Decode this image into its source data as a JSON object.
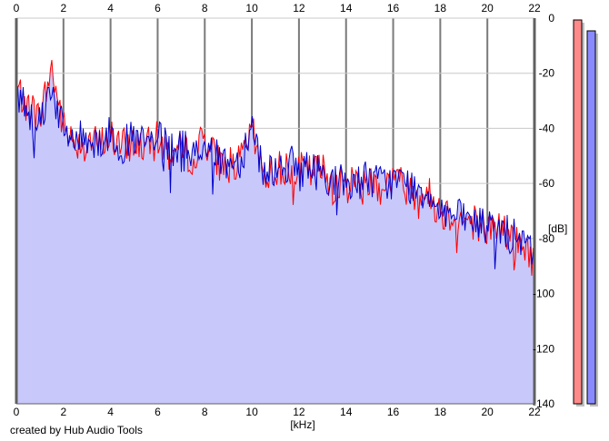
{
  "credit": "created by Hub Audio Tools",
  "chart_data": {
    "type": "area",
    "xlabel": "[kHz]",
    "ylabel": "[dB]",
    "xlim": [
      0,
      22
    ],
    "ylim": [
      -140,
      0
    ],
    "x_ticks": [
      0,
      2,
      4,
      6,
      8,
      10,
      12,
      14,
      16,
      18,
      20,
      22
    ],
    "y_ticks": [
      0,
      -20,
      -40,
      -60,
      -80,
      -100,
      -120,
      -140
    ],
    "grid": true,
    "fill_color": "#c8c8fa",
    "series": [
      {
        "color": "#ff0000",
        "x": [
          0,
          0.5,
          1,
          1.5,
          2,
          2.5,
          3,
          3.5,
          4,
          4.5,
          5,
          5.5,
          6,
          6.5,
          7,
          7.5,
          8,
          8.5,
          9,
          9.5,
          10,
          10.5,
          11,
          11.5,
          12,
          12.5,
          13,
          13.5,
          14,
          14.5,
          15,
          15.5,
          16,
          16.5,
          17,
          17.5,
          18,
          18.5,
          19,
          19.5,
          20,
          20.5,
          21,
          21.5,
          22
        ],
        "values": [
          -25,
          -32,
          -36,
          -18,
          -40,
          -45,
          -44,
          -46,
          -43,
          -47,
          -45,
          -47,
          -44,
          -49,
          -48,
          -50,
          -43,
          -52,
          -53,
          -53,
          -41,
          -57,
          -55,
          -54,
          -55,
          -56,
          -55,
          -60,
          -61,
          -58,
          -59,
          -61,
          -58,
          -61,
          -63,
          -64,
          -70,
          -71,
          -74,
          -73,
          -77,
          -75,
          -80,
          -83,
          -88
        ]
      },
      {
        "color": "#0000cc",
        "x": [
          0,
          0.5,
          1,
          1.5,
          2,
          2.5,
          3,
          3.5,
          4,
          4.5,
          5,
          5.5,
          6,
          6.5,
          7,
          7.5,
          8,
          8.5,
          9,
          9.5,
          10,
          10.5,
          11,
          11.5,
          12,
          12.5,
          13,
          13.5,
          14,
          14.5,
          15,
          15.5,
          16,
          16.5,
          17,
          17.5,
          18,
          18.5,
          19,
          19.5,
          20,
          20.5,
          21,
          21.5,
          22
        ],
        "values": [
          -27,
          -33,
          -37,
          -24,
          -42,
          -44,
          -43,
          -45,
          -42,
          -46,
          -44,
          -46,
          -44,
          -48,
          -47,
          -49,
          -45,
          -51,
          -52,
          -52,
          -38,
          -56,
          -54,
          -53,
          -54,
          -55,
          -56,
          -59,
          -60,
          -59,
          -58,
          -60,
          -59,
          -60,
          -62,
          -63,
          -68,
          -72,
          -73,
          -74,
          -76,
          -76,
          -79,
          -82,
          -86
        ]
      }
    ],
    "level_meters": [
      {
        "color": "#ff8a8a"
      },
      {
        "color": "#8a8aff"
      }
    ]
  }
}
